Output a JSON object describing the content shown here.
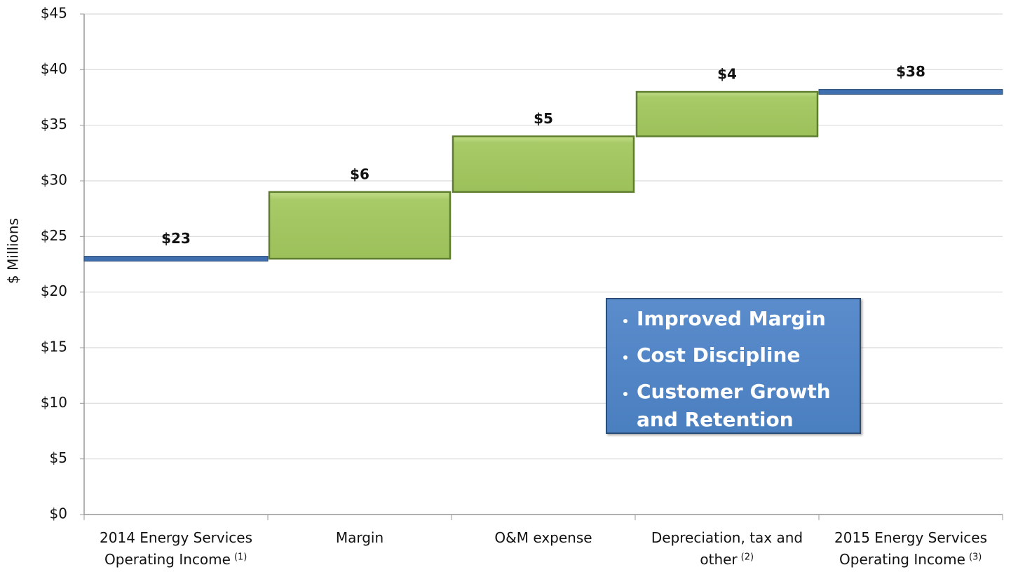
{
  "chart_data": {
    "type": "waterfall",
    "ylabel": "$ Millions",
    "categories": [
      "2014 Energy Services Operating Income",
      "Margin",
      "O&M expense",
      "Depreciation, tax and other",
      "2015 Energy Services Operating Income"
    ],
    "category_notes": [
      "(1)",
      null,
      null,
      "(2)",
      "(3)"
    ],
    "values": [
      23,
      6,
      5,
      4,
      38
    ],
    "value_labels": [
      "$23",
      "$6",
      "$5",
      "$4",
      "$38"
    ],
    "measures": [
      "absolute",
      "relative",
      "relative",
      "relative",
      "total"
    ],
    "colors": {
      "relative": "#a4c763",
      "absolute": "#3f6fae",
      "total": "#3f6fae"
    },
    "ylim": [
      0,
      45
    ],
    "yticks": [
      {
        "value": 0,
        "label": "$0"
      },
      {
        "value": 5,
        "label": "$5"
      },
      {
        "value": 10,
        "label": "$10"
      },
      {
        "value": 15,
        "label": "$15"
      },
      {
        "value": 20,
        "label": "$20"
      },
      {
        "value": 25,
        "label": "$25"
      },
      {
        "value": 30,
        "label": "$30"
      },
      {
        "value": 35,
        "label": "$35"
      },
      {
        "value": 40,
        "label": "$40"
      },
      {
        "value": 45,
        "label": "$45"
      }
    ],
    "grid": true,
    "annotation": [
      "Improved Margin",
      "Cost Discipline",
      "Customer Growth and Retention"
    ]
  }
}
